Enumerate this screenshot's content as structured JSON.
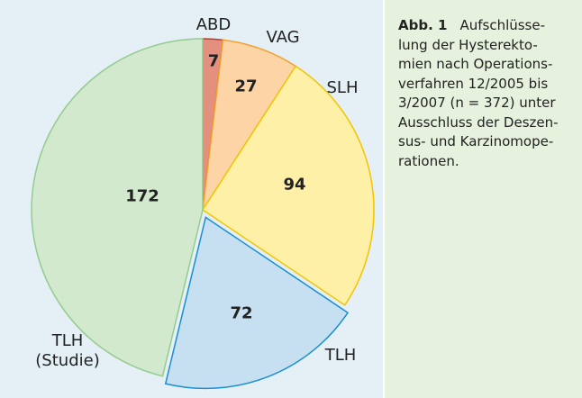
{
  "chart_data": {
    "type": "pie",
    "categories": [
      "ABD",
      "VAG",
      "SLH",
      "TLH",
      "TLH\n(Studie)"
    ],
    "values": [
      7,
      27,
      94,
      72,
      172
    ],
    "colors": [
      "#e3907f",
      "#fdd4a6",
      "#fef0a6",
      "#c6e0f1",
      "#d2e9cd"
    ],
    "edge_colors": [
      "#c0392b",
      "#f5a02a",
      "#f2c500",
      "#1b8fd1",
      "#93cc8f"
    ],
    "exploded": [
      false,
      false,
      false,
      true,
      false
    ],
    "caption_label": "Abb. 1",
    "caption_lines": [
      "Aufschlüsse-",
      "lung der Hysterekto-",
      "mien nach Operations-",
      "verfahren 12/2005 bis",
      "3/2007 (n = 372) unter",
      "Ausschluss der Deszen-",
      "sus- und Karzinomope-",
      "rationen."
    ]
  }
}
